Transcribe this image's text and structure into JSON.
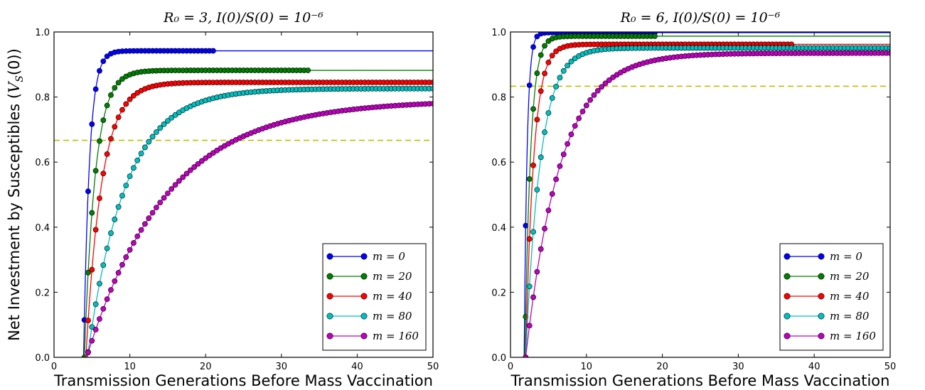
{
  "figure": {
    "ylabel_text": "Net Investment by Susceptibles (",
    "ylabel_math": "V",
    "ylabel_sub": "S",
    "ylabel_tail": "(0))"
  },
  "chart_data": [
    {
      "type": "line",
      "title": "R₀ = 3,     I(0)/S(0) = 10⁻⁶",
      "xlabel": "Transmission Generations Before Mass Vaccination",
      "ylabel": "Net Investment by Susceptibles (V_S(0))",
      "xlim": [
        0,
        50
      ],
      "ylim": [
        0,
        1.0
      ],
      "xticks": [
        0,
        10,
        20,
        30,
        40,
        50
      ],
      "yticks": [
        0.0,
        0.2,
        0.4,
        0.6,
        0.8,
        1.0
      ],
      "hline": {
        "y": 0.667,
        "color": "#bfbf00",
        "style": "dashed"
      },
      "legend_position": "lower-right",
      "series": [
        {
          "name": "m = 0",
          "color": "#0000ff",
          "k": 1.3,
          "t0": 3.9,
          "plateau": 0.942,
          "end": 21
        },
        {
          "name": "m = 20",
          "color": "#007f00",
          "k": 0.7,
          "t0": 4.0,
          "plateau": 0.882,
          "end": 33.5
        },
        {
          "name": "m = 40",
          "color": "#ff0000",
          "k": 0.48,
          "t0": 4.2,
          "plateau": 0.845,
          "end": 50
        },
        {
          "name": "m = 80",
          "color": "#00bfbf",
          "k": 0.2,
          "t0": 4.4,
          "plateau": 0.826,
          "end": 50
        },
        {
          "name": "m = 160",
          "color": "#bf00bf",
          "k": 0.095,
          "t0": 4.3,
          "plateau": 0.79,
          "end": 50
        }
      ]
    },
    {
      "type": "line",
      "title": "R₀ = 6,     I(0)/S(0) = 10⁻⁶",
      "xlabel": "Transmission Generations Before Mass Vaccination",
      "ylabel": "",
      "xlim": [
        0,
        50
      ],
      "ylim": [
        0,
        1.0
      ],
      "xticks": [
        0,
        10,
        20,
        30,
        40,
        50
      ],
      "yticks": [
        0.0,
        0.2,
        0.4,
        0.6,
        0.8,
        1.0
      ],
      "hline": {
        "y": 0.833,
        "color": "#bfbf00",
        "style": "dashed"
      },
      "legend_position": "lower-right",
      "series": [
        {
          "name": "m = 0",
          "color": "#0000ff",
          "k": 2.6,
          "t0": 1.8,
          "plateau": 0.998,
          "end": 19
        },
        {
          "name": "m = 20",
          "color": "#007f00",
          "k": 1.35,
          "t0": 1.9,
          "plateau": 0.987,
          "end": 19
        },
        {
          "name": "m = 40",
          "color": "#ff0000",
          "k": 0.95,
          "t0": 2.0,
          "plateau": 0.962,
          "end": 37
        },
        {
          "name": "m = 80",
          "color": "#00bfbf",
          "k": 0.52,
          "t0": 2.0,
          "plateau": 0.951,
          "end": 50
        },
        {
          "name": "m = 160",
          "color": "#bf00bf",
          "k": 0.22,
          "t0": 2.0,
          "plateau": 0.935,
          "end": 50
        }
      ]
    }
  ]
}
